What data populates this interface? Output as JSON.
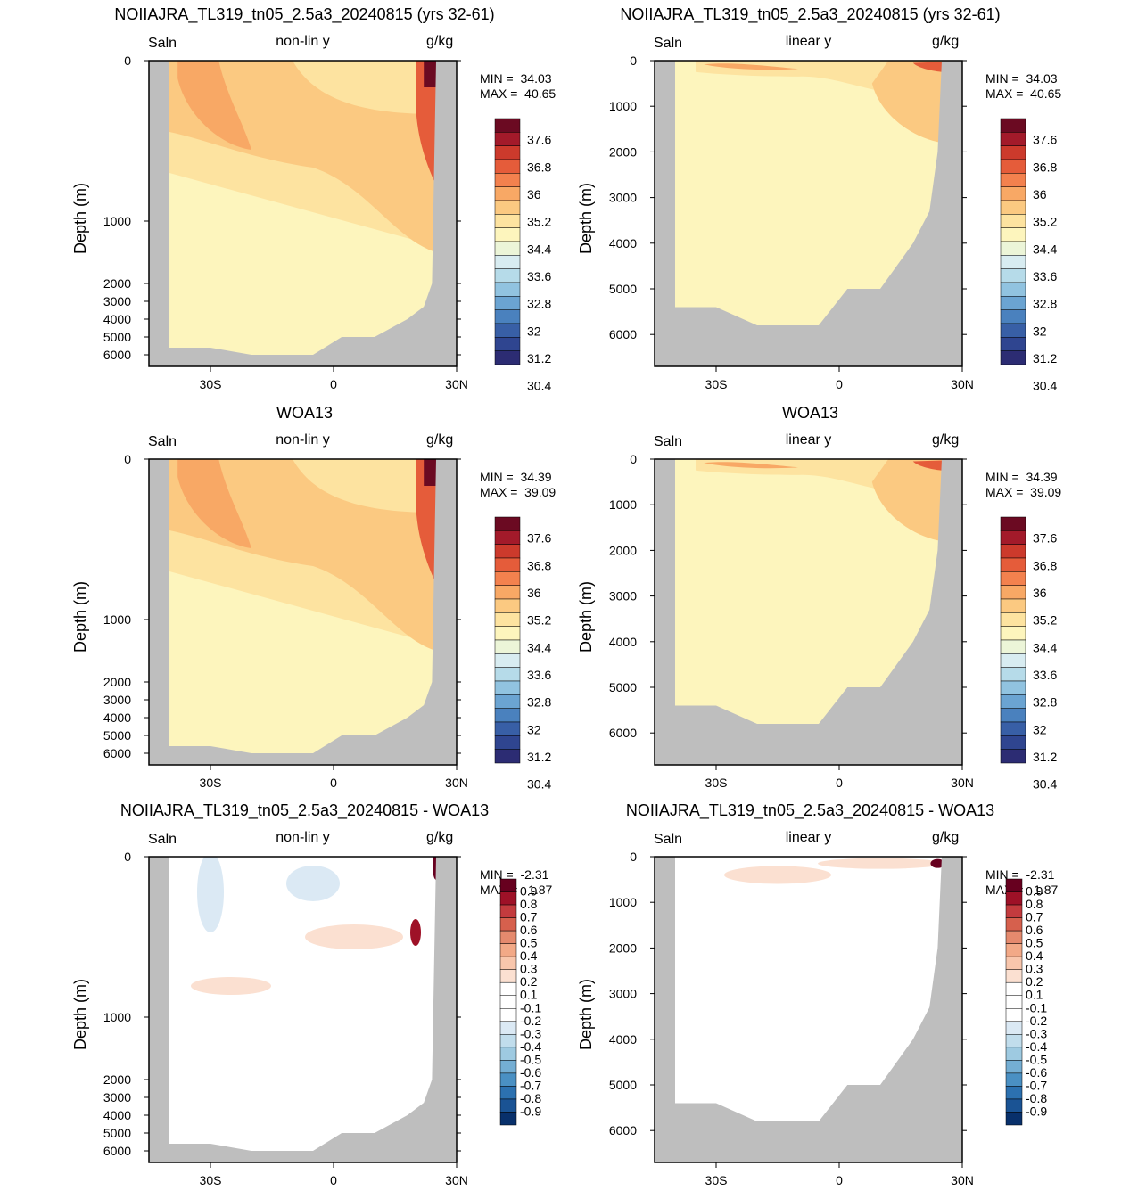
{
  "chart_data": [
    {
      "type": "heatmap",
      "panel": 1,
      "title": "NOIIAJRA_TL319_tn05_2.5a3_20240815 (yrs 32-61)",
      "left_label": "Saln",
      "center_label": "non-lin y",
      "right_label": "g/kg",
      "ylabel": "Depth (m)",
      "y_ticks": [
        "0",
        "1000",
        "2000",
        "3000",
        "4000",
        "5000",
        "6000"
      ],
      "x_ticks": [
        "30S",
        "0",
        "30N"
      ],
      "min_text": "MIN =  34.03",
      "max_text": "MAX =  40.65",
      "colorbar_labels": [
        "37.6",
        "36.8",
        "36",
        "35.2",
        "34.4",
        "33.6",
        "32.8",
        "32",
        "31.2",
        "30.4"
      ],
      "xlim": [
        -45,
        30
      ],
      "ylim": [
        6800,
        0
      ],
      "y_scale": "non-linear"
    },
    {
      "type": "heatmap",
      "panel": 2,
      "title": "NOIIAJRA_TL319_tn05_2.5a3_20240815 (yrs 32-61)",
      "left_label": "Saln",
      "center_label": "linear y",
      "right_label": "g/kg",
      "ylabel": "Depth (m)",
      "y_ticks": [
        "0",
        "1000",
        "2000",
        "3000",
        "4000",
        "5000",
        "6000"
      ],
      "x_ticks": [
        "30S",
        "0",
        "30N"
      ],
      "min_text": "MIN =  34.03",
      "max_text": "MAX =  40.65",
      "colorbar_labels": [
        "37.6",
        "36.8",
        "36",
        "35.2",
        "34.4",
        "33.6",
        "32.8",
        "32",
        "31.2",
        "30.4"
      ],
      "xlim": [
        -45,
        30
      ],
      "ylim": [
        6800,
        0
      ],
      "y_scale": "linear"
    },
    {
      "type": "heatmap",
      "panel": 3,
      "title": "WOA13",
      "left_label": "Saln",
      "center_label": "non-lin y",
      "right_label": "g/kg",
      "ylabel": "Depth (m)",
      "y_ticks": [
        "0",
        "1000",
        "2000",
        "3000",
        "4000",
        "5000",
        "6000"
      ],
      "x_ticks": [
        "30S",
        "0",
        "30N"
      ],
      "min_text": "MIN =  34.39",
      "max_text": "MAX =  39.09",
      "colorbar_labels": [
        "37.6",
        "36.8",
        "36",
        "35.2",
        "34.4",
        "33.6",
        "32.8",
        "32",
        "31.2",
        "30.4"
      ],
      "xlim": [
        -45,
        30
      ],
      "ylim": [
        6800,
        0
      ],
      "y_scale": "non-linear"
    },
    {
      "type": "heatmap",
      "panel": 4,
      "title": "WOA13",
      "left_label": "Saln",
      "center_label": "linear y",
      "right_label": "g/kg",
      "ylabel": "Depth (m)",
      "y_ticks": [
        "0",
        "1000",
        "2000",
        "3000",
        "4000",
        "5000",
        "6000"
      ],
      "x_ticks": [
        "30S",
        "0",
        "30N"
      ],
      "min_text": "MIN =  34.39",
      "max_text": "MAX =  39.09",
      "colorbar_labels": [
        "37.6",
        "36.8",
        "36",
        "35.2",
        "34.4",
        "33.6",
        "32.8",
        "32",
        "31.2",
        "30.4"
      ],
      "xlim": [
        -45,
        30
      ],
      "ylim": [
        6800,
        0
      ],
      "y_scale": "linear"
    },
    {
      "type": "heatmap",
      "panel": 5,
      "title": "NOIIAJRA_TL319_tn05_2.5a3_20240815 - WOA13",
      "left_label": "Saln",
      "center_label": "non-lin y",
      "right_label": "g/kg",
      "ylabel": "Depth (m)",
      "y_ticks": [
        "0",
        "1000",
        "2000",
        "3000",
        "4000",
        "5000",
        "6000"
      ],
      "x_ticks": [
        "30S",
        "0",
        "30N"
      ],
      "min_text": "MIN =  -2.31",
      "max_text": "MAX =   1.87",
      "colorbar_labels": [
        "0.9",
        "0.8",
        "0.7",
        "0.6",
        "0.5",
        "0.4",
        "0.3",
        "0.2",
        "0.1",
        "-0.1",
        "-0.2",
        "-0.3",
        "-0.4",
        "-0.5",
        "-0.6",
        "-0.7",
        "-0.8",
        "-0.9"
      ],
      "xlim": [
        -45,
        30
      ],
      "ylim": [
        6800,
        0
      ],
      "y_scale": "non-linear"
    },
    {
      "type": "heatmap",
      "panel": 6,
      "title": "NOIIAJRA_TL319_tn05_2.5a3_20240815 - WOA13",
      "left_label": "Saln",
      "center_label": "linear y",
      "right_label": "g/kg",
      "ylabel": "Depth (m)",
      "y_ticks": [
        "0",
        "1000",
        "2000",
        "3000",
        "4000",
        "5000",
        "6000"
      ],
      "x_ticks": [
        "30S",
        "0",
        "30N"
      ],
      "min_text": "MIN =  -2.31",
      "max_text": "MAX =   1.87",
      "colorbar_labels": [
        "0.9",
        "0.8",
        "0.7",
        "0.6",
        "0.5",
        "0.4",
        "0.3",
        "0.2",
        "0.1",
        "-0.1",
        "-0.2",
        "-0.3",
        "-0.4",
        "-0.5",
        "-0.6",
        "-0.7",
        "-0.8",
        "-0.9"
      ],
      "xlim": [
        -45,
        30
      ],
      "ylim": [
        6800,
        0
      ],
      "y_scale": "linear"
    }
  ],
  "colors": {
    "land": "#bebebe",
    "salinity_palette": [
      "#6b0a22",
      "#a31a2a",
      "#cc3a2c",
      "#e55c3a",
      "#f3814e",
      "#f8a865",
      "#fbc981",
      "#fde3a0",
      "#fdf5bd",
      "#ecf5d8",
      "#d8ecf1",
      "#b6dbe9",
      "#91c3e0",
      "#6ba4d2",
      "#4a81be",
      "#385fa6",
      "#2f4590",
      "#2c2c73"
    ],
    "diff_palette": [
      "#67001f",
      "#9e1127",
      "#c33b3e",
      "#d6604d",
      "#e58a6e",
      "#f2a987",
      "#f8c6ac",
      "#fbe0d1",
      "#ffffff",
      "#ffffff",
      "#dbe9f4",
      "#c1ddec",
      "#9ecae1",
      "#74aed3",
      "#4a90c3",
      "#2c71b0",
      "#1a5394",
      "#08306b"
    ]
  }
}
